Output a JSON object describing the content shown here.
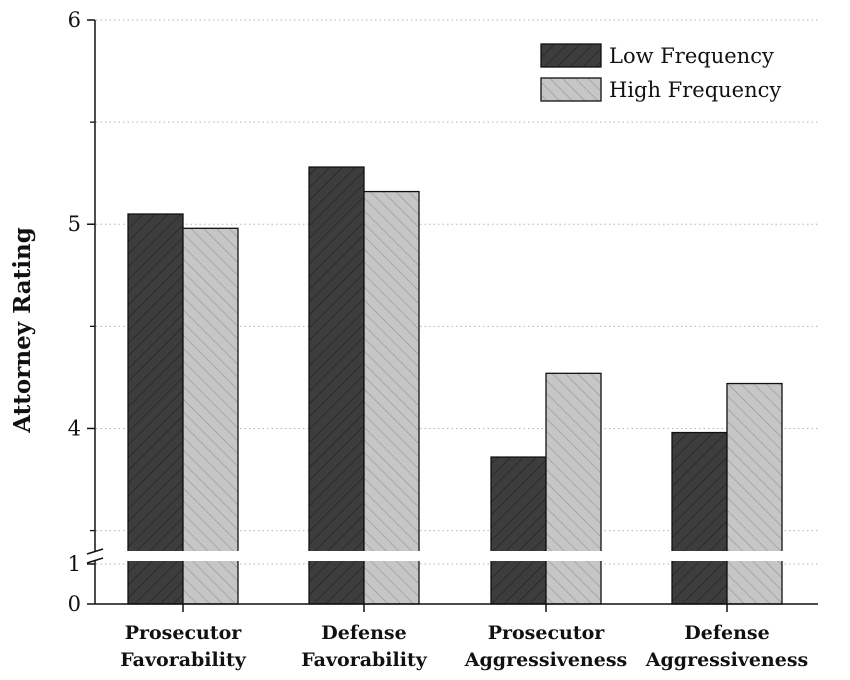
{
  "chart_data": {
    "type": "bar",
    "title": "",
    "xlabel": "",
    "ylabel": "Attorney Rating",
    "categories": [
      [
        "Prosecutor",
        "Favorability"
      ],
      [
        "Defense",
        "Favorability"
      ],
      [
        "Prosecutor",
        "Aggressiveness"
      ],
      [
        "Defense",
        "Aggressiveness"
      ]
    ],
    "series": [
      {
        "name": "Low Frequency",
        "values": [
          5.05,
          5.28,
          3.86,
          3.98
        ],
        "color": "#3d3d3d",
        "hatch": "forward-diagonal"
      },
      {
        "name": "High Frequency",
        "values": [
          4.98,
          5.16,
          4.27,
          4.22
        ],
        "color": "#c4c4c4",
        "hatch": "back-diagonal"
      }
    ],
    "y_axis": {
      "broken": true,
      "lower_segment": [
        0,
        1
      ],
      "upper_segment": [
        3.4,
        6
      ],
      "major_ticks": [
        {
          "value": 0,
          "label": "0"
        },
        {
          "value": 1,
          "label": "1"
        },
        {
          "value": 4,
          "label": "4"
        },
        {
          "value": 5,
          "label": "5"
        },
        {
          "value": 6,
          "label": "6"
        }
      ],
      "minor_ticks": [
        3.5,
        4.5,
        5.5
      ]
    },
    "grid": "horizontal dotted",
    "legend_position": "top-right"
  }
}
